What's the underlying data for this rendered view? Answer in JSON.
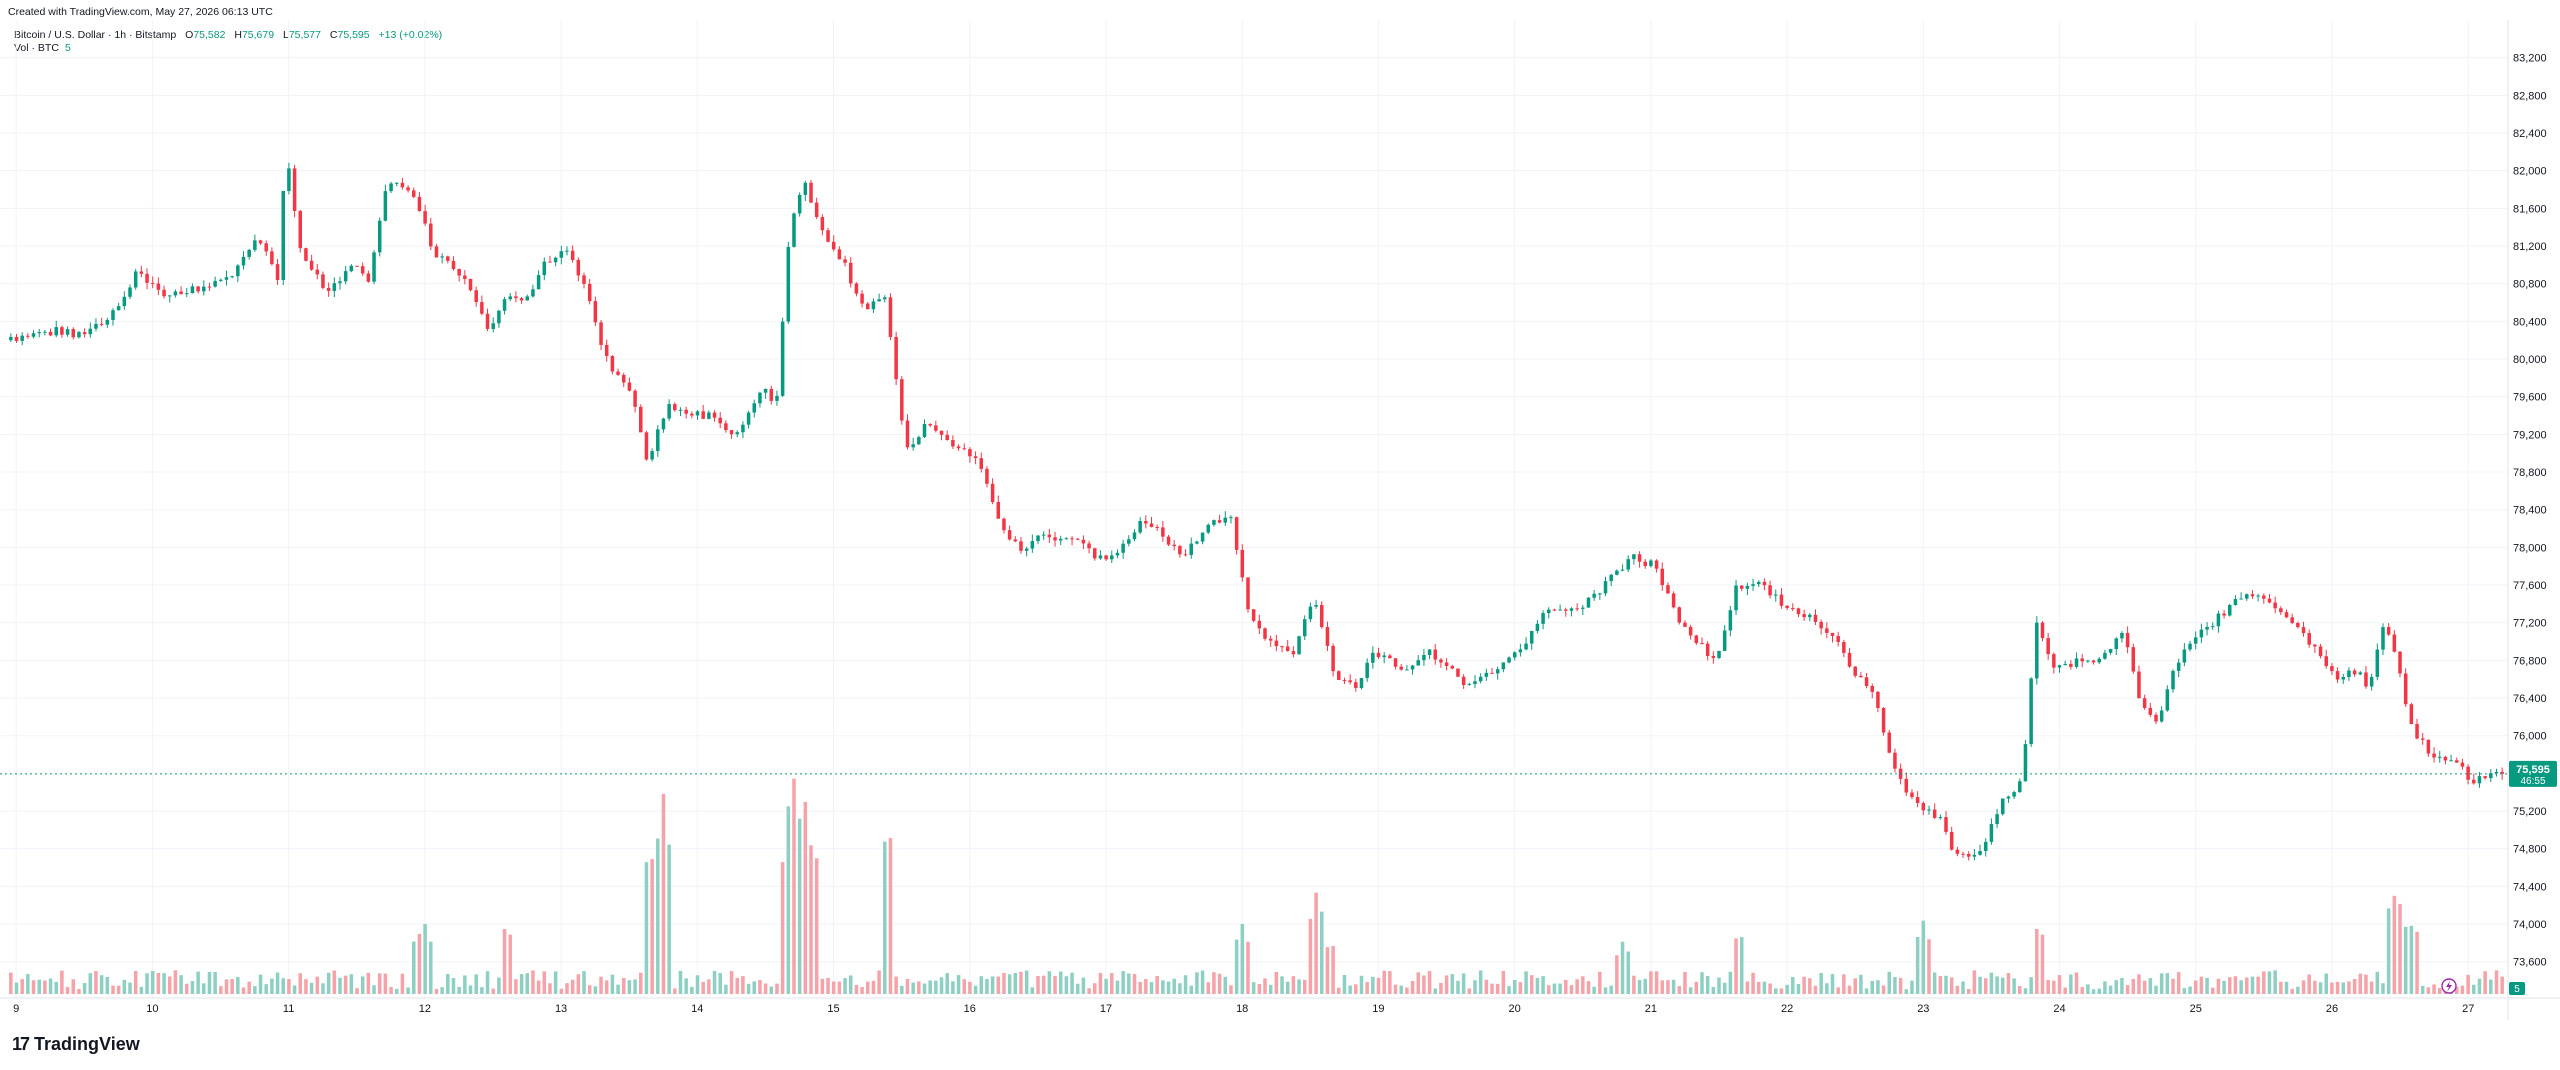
{
  "header": {
    "created_with": "Created with TradingView.com, May 27, 2026 06:13 UTC"
  },
  "legend": {
    "symbol": "Bitcoin / U.S. Dollar · 1h · Bitstamp",
    "open_label": "O",
    "open": "75,582",
    "high_label": "H",
    "high": "75,679",
    "low_label": "L",
    "low": "75,577",
    "close_label": "C",
    "close": "75,595",
    "change": "+13 (+0.02%)"
  },
  "volume_legend": {
    "label": "Vol · BTC",
    "value": "5"
  },
  "price_badge": {
    "price": "75,595",
    "countdown": "46:55"
  },
  "volume_badge": "5",
  "logo": {
    "text": "TradingView",
    "mark": "17"
  },
  "colors": {
    "up": "#089981",
    "down": "#f23645",
    "up_volume": "#8dd0c3",
    "down_volume": "#f5a3a8",
    "grid": "#f0f3fa",
    "price_line": "#089981"
  },
  "chart_data": {
    "type": "candlestick",
    "symbol": "Bitcoin / U.S. Dollar",
    "interval": "1h",
    "exchange": "Bitstamp",
    "ylim": [
      73300,
      83600
    ],
    "y_ticks": [
      "83,200",
      "82,800",
      "82,400",
      "82,000",
      "81,600",
      "81,200",
      "80,800",
      "80,400",
      "80,000",
      "79,600",
      "79,200",
      "78,800",
      "78,400",
      "78,000",
      "77,600",
      "77,200",
      "76,800",
      "76,400",
      "76,000",
      "75,200",
      "74,800",
      "74,400",
      "74,000",
      "73,600"
    ],
    "y_tick_values": [
      83200,
      82800,
      82400,
      82000,
      81600,
      81200,
      80800,
      80400,
      80000,
      79600,
      79200,
      78800,
      78400,
      78000,
      77600,
      77200,
      76800,
      76400,
      76000,
      75200,
      74800,
      74400,
      74000,
      73600
    ],
    "x_ticks": [
      "9",
      "10",
      "11",
      "12",
      "13",
      "14",
      "15",
      "16",
      "17",
      "18",
      "19",
      "20",
      "21",
      "22",
      "23",
      "24",
      "25",
      "26",
      "27"
    ],
    "x_tick_days": [
      9,
      10,
      11,
      12,
      13,
      14,
      15,
      16,
      17,
      18,
      19,
      20,
      21,
      22,
      23,
      24,
      25,
      26,
      27
    ],
    "x_start_day": 8.94,
    "x_end_day": 27.27,
    "last_price": 75595,
    "price_anchors": [
      [
        8.94,
        80200
      ],
      [
        9.3,
        80300
      ],
      [
        9.5,
        80250
      ],
      [
        9.7,
        80400
      ],
      [
        9.9,
        80900
      ],
      [
        10.1,
        80700
      ],
      [
        10.4,
        80750
      ],
      [
        10.6,
        80900
      ],
      [
        10.8,
        81300
      ],
      [
        10.95,
        80800
      ],
      [
        11.0,
        82300
      ],
      [
        11.1,
        81200
      ],
      [
        11.3,
        80700
      ],
      [
        11.5,
        81000
      ],
      [
        11.6,
        80800
      ],
      [
        11.75,
        81900
      ],
      [
        11.95,
        81700
      ],
      [
        12.1,
        81100
      ],
      [
        12.3,
        80900
      ],
      [
        12.5,
        80300
      ],
      [
        12.6,
        80600
      ],
      [
        12.8,
        80700
      ],
      [
        12.9,
        81000
      ],
      [
        13.05,
        81150
      ],
      [
        13.2,
        80800
      ],
      [
        13.35,
        80000
      ],
      [
        13.55,
        79600
      ],
      [
        13.65,
        78900
      ],
      [
        13.8,
        79500
      ],
      [
        13.95,
        79400
      ],
      [
        14.1,
        79400
      ],
      [
        14.3,
        79200
      ],
      [
        14.5,
        79700
      ],
      [
        14.6,
        79500
      ],
      [
        14.7,
        81400
      ],
      [
        14.8,
        81900
      ],
      [
        14.95,
        81300
      ],
      [
        15.1,
        81000
      ],
      [
        15.25,
        80500
      ],
      [
        15.4,
        80700
      ],
      [
        15.55,
        79000
      ],
      [
        15.7,
        79300
      ],
      [
        15.9,
        79100
      ],
      [
        16.1,
        78900
      ],
      [
        16.25,
        78200
      ],
      [
        16.4,
        78000
      ],
      [
        16.55,
        78100
      ],
      [
        16.8,
        78100
      ],
      [
        16.95,
        77900
      ],
      [
        17.1,
        77900
      ],
      [
        17.3,
        78300
      ],
      [
        17.45,
        78100
      ],
      [
        17.6,
        77900
      ],
      [
        17.8,
        78300
      ],
      [
        17.95,
        78300
      ],
      [
        18.05,
        77400
      ],
      [
        18.2,
        77000
      ],
      [
        18.4,
        76900
      ],
      [
        18.55,
        77500
      ],
      [
        18.7,
        76600
      ],
      [
        18.85,
        76500
      ],
      [
        19.0,
        76900
      ],
      [
        19.2,
        76700
      ],
      [
        19.4,
        76900
      ],
      [
        19.55,
        76700
      ],
      [
        19.7,
        76500
      ],
      [
        19.95,
        76800
      ],
      [
        20.1,
        77000
      ],
      [
        20.25,
        77300
      ],
      [
        20.4,
        77300
      ],
      [
        20.55,
        77400
      ],
      [
        20.75,
        77700
      ],
      [
        20.9,
        77900
      ],
      [
        21.05,
        77800
      ],
      [
        21.2,
        77300
      ],
      [
        21.35,
        77000
      ],
      [
        21.5,
        76800
      ],
      [
        21.65,
        77600
      ],
      [
        21.85,
        77600
      ],
      [
        22.0,
        77400
      ],
      [
        22.15,
        77300
      ],
      [
        22.35,
        77100
      ],
      [
        22.5,
        76700
      ],
      [
        22.65,
        76500
      ],
      [
        22.8,
        75700
      ],
      [
        22.95,
        75300
      ],
      [
        23.15,
        75100
      ],
      [
        23.25,
        74700
      ],
      [
        23.45,
        74800
      ],
      [
        23.6,
        75300
      ],
      [
        23.75,
        75500
      ],
      [
        23.85,
        77200
      ],
      [
        24.0,
        76700
      ],
      [
        24.15,
        76800
      ],
      [
        24.3,
        76800
      ],
      [
        24.5,
        77100
      ],
      [
        24.6,
        76400
      ],
      [
        24.75,
        76100
      ],
      [
        24.85,
        76700
      ],
      [
        25.0,
        77000
      ],
      [
        25.15,
        77200
      ],
      [
        25.3,
        77400
      ],
      [
        25.45,
        77500
      ],
      [
        25.6,
        77400
      ],
      [
        25.75,
        77200
      ],
      [
        25.9,
        76900
      ],
      [
        26.05,
        76600
      ],
      [
        26.2,
        76700
      ],
      [
        26.3,
        76500
      ],
      [
        26.4,
        77200
      ],
      [
        26.5,
        76800
      ],
      [
        26.6,
        76100
      ],
      [
        26.75,
        75800
      ],
      [
        26.95,
        75700
      ],
      [
        27.05,
        75500
      ],
      [
        27.2,
        75595
      ]
    ],
    "volume_spikes": [
      [
        11.95,
        19
      ],
      [
        12.0,
        21
      ],
      [
        12.6,
        21
      ],
      [
        13.65,
        45
      ],
      [
        13.75,
        60
      ],
      [
        14.65,
        45
      ],
      [
        14.7,
        68
      ],
      [
        14.78,
        62
      ],
      [
        14.85,
        48
      ],
      [
        15.4,
        52
      ],
      [
        18.0,
        21
      ],
      [
        18.55,
        31
      ],
      [
        18.65,
        16
      ],
      [
        20.8,
        16
      ],
      [
        21.65,
        19
      ],
      [
        23.0,
        22
      ],
      [
        23.85,
        21
      ],
      [
        26.45,
        31
      ],
      [
        26.5,
        27
      ],
      [
        26.6,
        22
      ]
    ],
    "volume_base": 3.5,
    "volume_ylim": [
      0,
      75
    ]
  }
}
